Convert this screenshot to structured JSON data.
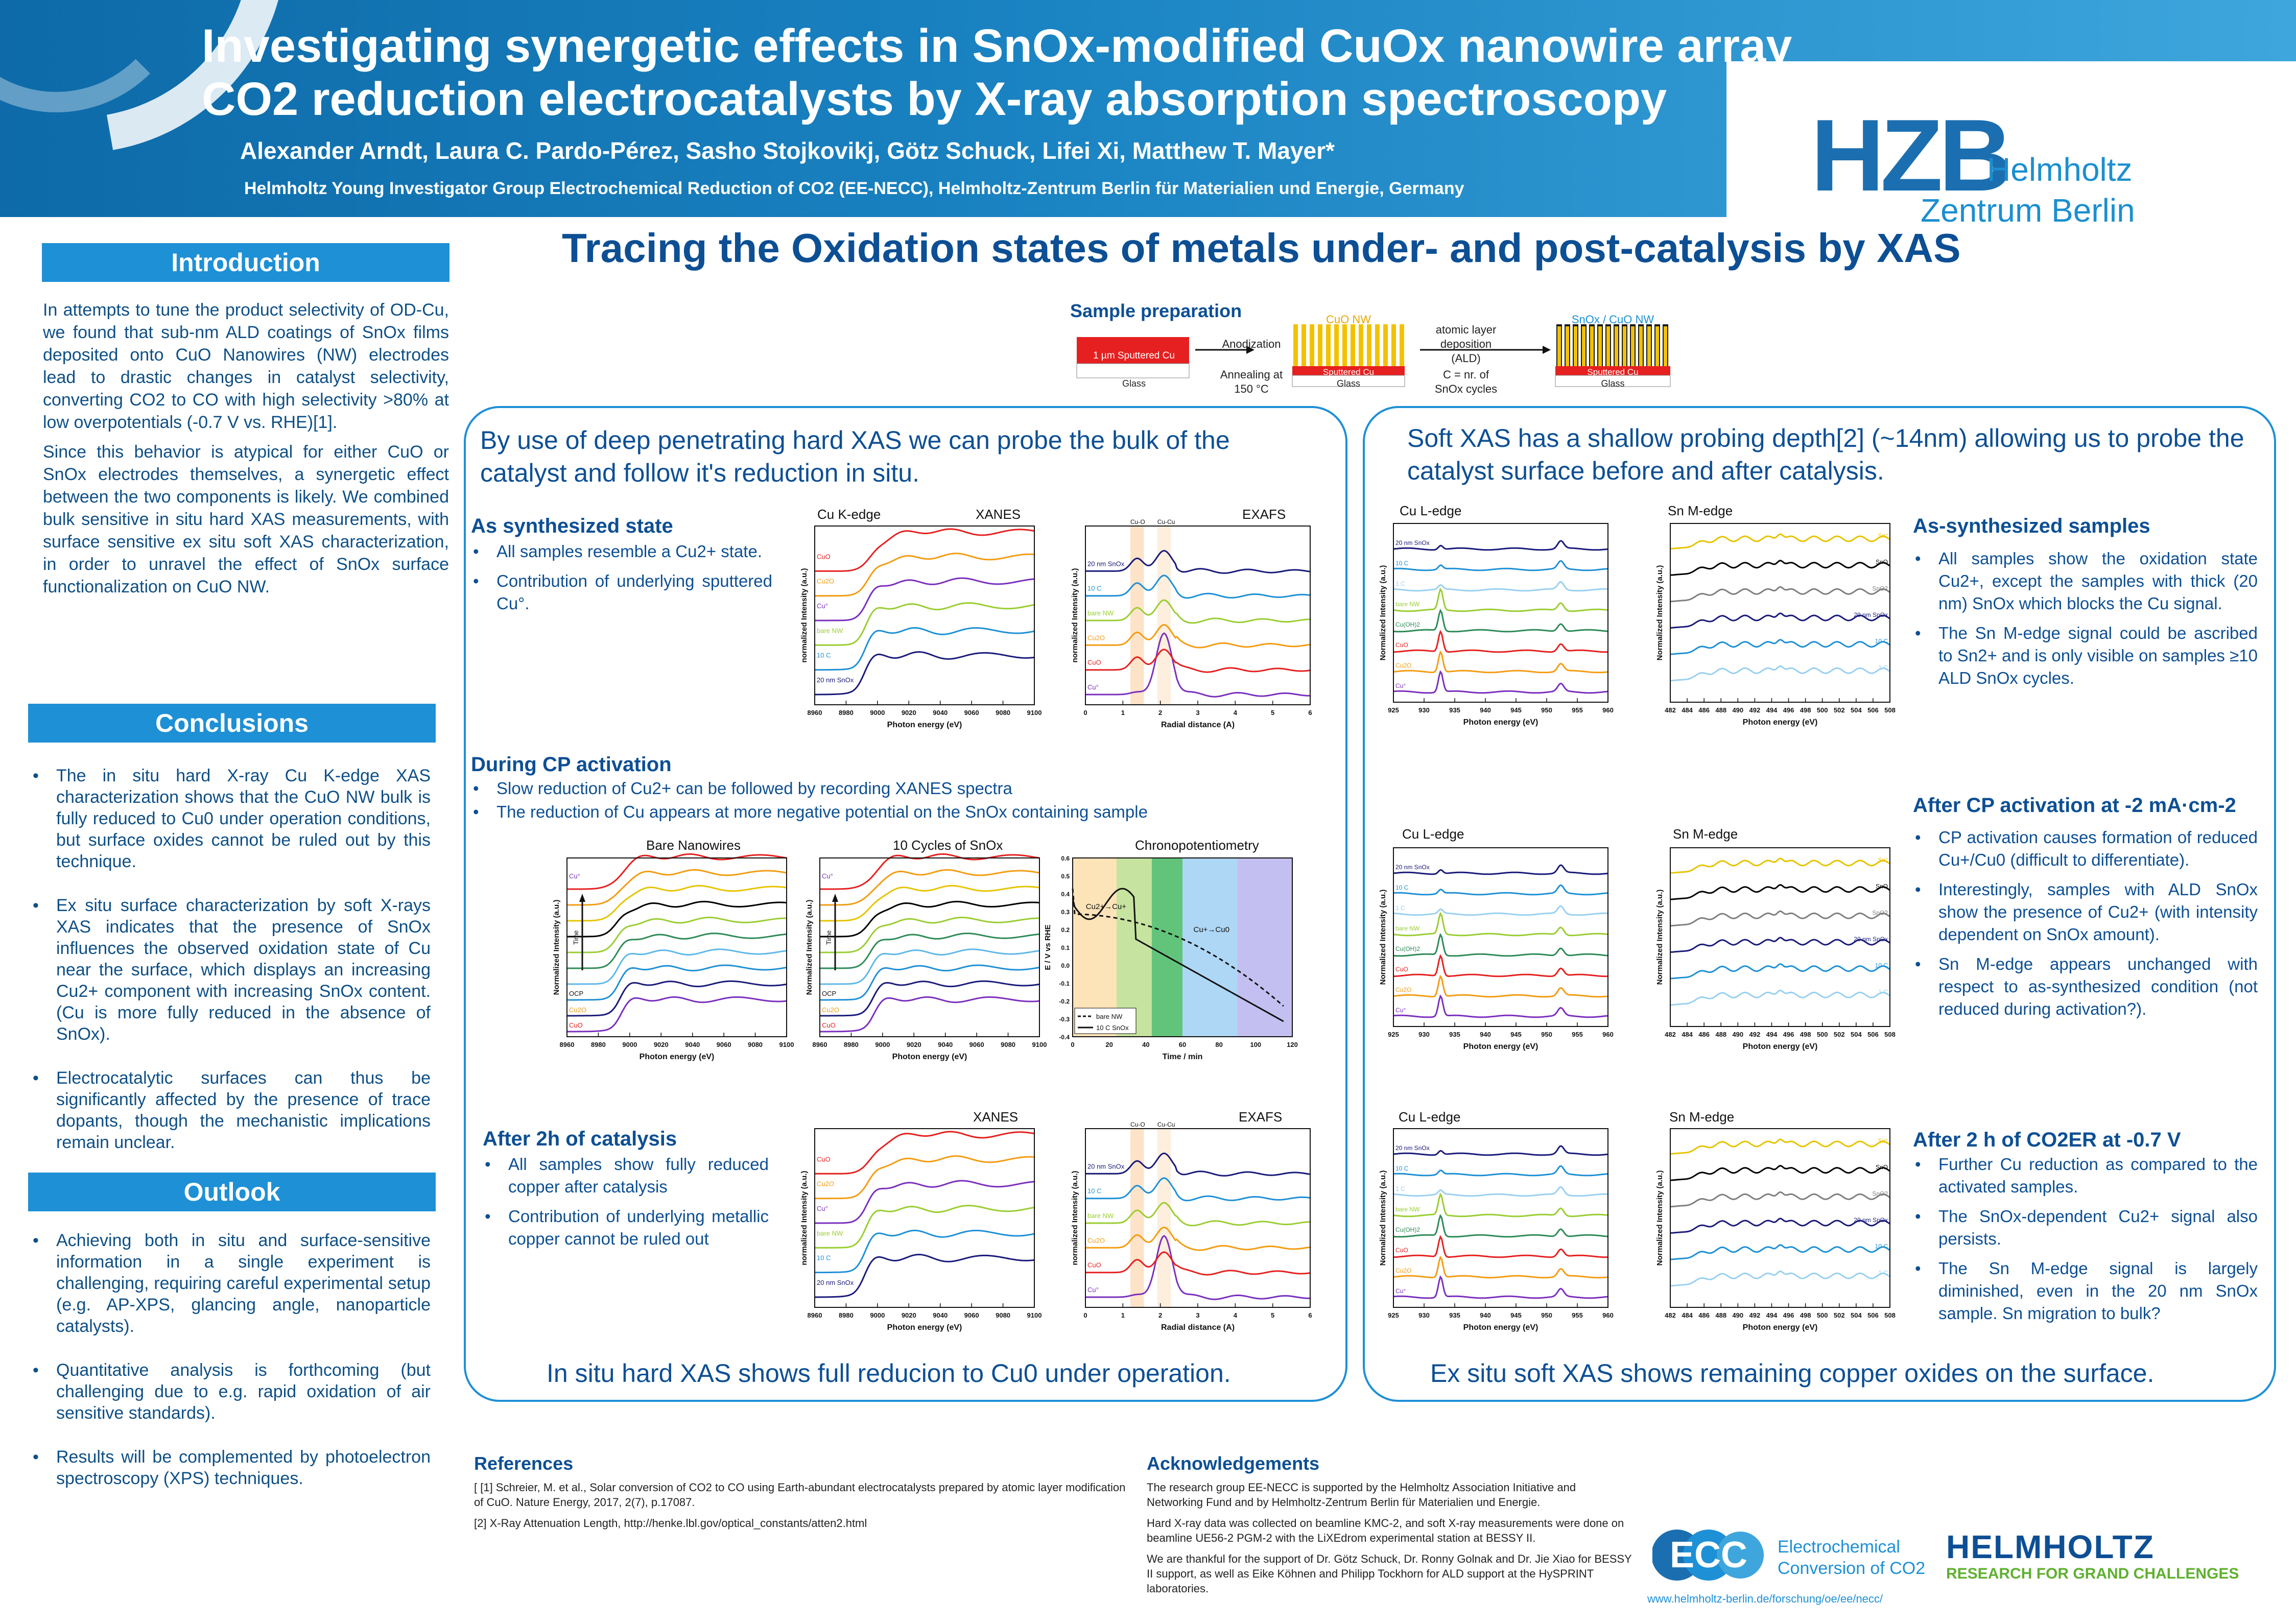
{
  "header": {
    "title_line1": "Investigating synergetic effects in SnOx-modified CuOx nanowire array",
    "title_line2": "CO2 reduction electrocatalysts by X-ray absorption spectroscopy",
    "authors": "Alexander Arndt, Laura C. Pardo-Pérez, Sasho Stojkovikj, Götz Schuck, Lifei Xi, Matthew T. Mayer*",
    "affiliation": "Helmholtz Young Investigator Group Electrochemical Reduction of CO2 (EE-NECC), Helmholtz-Zentrum Berlin für Materialien und Energie, Germany",
    "logo_mark": "HZB",
    "logo_name1": "Helmholtz",
    "logo_name2": "Zentrum Berlin"
  },
  "introduction": {
    "heading": "Introduction",
    "para1": "In attempts to tune the product selectivity of OD-Cu, we found that sub-nm ALD coatings of SnOx films deposited onto CuO Nanowires (NW) electrodes lead to drastic changes in catalyst selectivity, converting CO2 to CO with high selectivity >80% at low overpotentials (-0.7 V vs. RHE)[1].",
    "para2": "Since this behavior is atypical for either CuO or SnOx electrodes themselves, a synergetic effect between the two components is likely. We combined bulk sensitive in situ hard XAS measurements, with surface sensitive ex situ soft XAS characterization, in order to unravel the effect of SnOx surface functionalization on CuO NW."
  },
  "conclusions": {
    "heading": "Conclusions",
    "items": [
      "The in situ hard X-ray Cu K-edge XAS characterization shows that the CuO NW bulk is fully reduced to Cu0 under operation conditions, but surface oxides cannot be ruled out by this technique.",
      "Ex situ surface characterization by soft X-rays XAS indicates that the presence of SnOx influences the observed oxidation state of Cu near the surface, which displays an increasing Cu2+ component with increasing SnOx content. (Cu is more fully reduced in the absence of SnOx).",
      "Electrocatalytic surfaces can thus be significantly affected by the presence of trace dopants, though the mechanistic implications remain unclear."
    ]
  },
  "outlook": {
    "heading": "Outlook",
    "items": [
      "Achieving both in situ and surface-sensitive information in a single experiment is challenging, requiring careful experimental setup (e.g. AP-XPS, glancing angle, nanoparticle catalysts).",
      "Quantitative analysis is forthcoming (but challenging due to e.g. rapid oxidation of air sensitive standards).",
      "Results will be complemented by photoelectron spectroscopy (XPS) techniques."
    ]
  },
  "main_title": "Tracing the Oxidation states of metals under- and post-catalysis by XAS",
  "sample_prep": {
    "heading": "Sample preparation",
    "layer1": "1 µm Sputtered Cu",
    "glass": "Glass",
    "anodization": "Anodization",
    "annealing": "Annealing at 150 °C",
    "cuo_nw": "CuO NW",
    "sputtered_cu": "Sputtered Cu",
    "ald": "atomic layer deposition (ALD)",
    "cycles": "C = nr. of SnOx cycles",
    "sno_cuo": "SnOx / CuO NW"
  },
  "hard_panel": {
    "intro": "By use of deep penetrating hard XAS we can probe the bulk of the catalyst and follow it's reduction in situ.",
    "foot": "In situ hard XAS shows full reducion to Cu0 under operation.",
    "as_synth_head": "As synthesized state",
    "as_synth_items": [
      "All samples resemble a Cu2+ state.",
      "Contribution of underlying sputtered Cu°."
    ],
    "cp_head": "During CP activation",
    "cp_items": [
      "Slow reduction of Cu2+ can be followed by recording XANES spectra",
      "The reduction of Cu appears at more negative potential on the SnOx containing sample"
    ],
    "after_head": "After 2h of catalysis",
    "after_items": [
      "All samples show fully reduced copper after catalysis",
      "Contribution of underlying metallic copper cannot be ruled out"
    ],
    "cap_cuk": "Cu K-edge",
    "cap_xanes": "XANES",
    "cap_exafs": "EXAFS",
    "cap_bare": "Bare Nanowires",
    "cap_10c": "10 Cycles of SnOx",
    "cap_chrono": "Chronopotentiometry"
  },
  "soft_panel": {
    "intro": "Soft XAS has a shallow probing depth[2] (~14nm) allowing us to probe the catalyst surface before and after catalysis.",
    "foot": "Ex situ soft XAS shows remaining copper oxides on the surface.",
    "as_synth_head": "As-synthesized samples",
    "as_synth_items": [
      "All samples show the oxidation state Cu2+, except the samples with thick (20 nm) SnOx which blocks the Cu signal.",
      "The Sn M-edge signal could be ascribed to Sn2+ and is only visible on samples ≥10 ALD SnOx cycles."
    ],
    "cp_head": "After CP activation at -2 mA·cm-2",
    "cp_items": [
      "CP activation causes formation of reduced Cu+/Cu0 (difficult to differentiate).",
      "Interestingly, samples with ALD SnOx show the presence of Cu2+ (with intensity dependent on SnOx amount).",
      "Sn M-edge appears unchanged with respect to as-synthesized condition (not reduced during activation?)."
    ],
    "after_head": "After 2 h of CO2ER at -0.7 V",
    "after_items": [
      "Further Cu reduction as compared to the activated samples.",
      "The SnOx-dependent Cu2+ signal also persists.",
      "The Sn M-edge signal is largely diminished, even in the 20 nm SnOx sample. Sn migration to bulk?"
    ],
    "cap_cul": "Cu L-edge",
    "cap_snm": "Sn M-edge"
  },
  "axes": {
    "photon_ev": "Photon energy (eV)",
    "norm_int": "normalized Intensity (a.u.)",
    "norm_int2": "Normalized Intensity (a.u.)",
    "radial": "Radial distance (A)",
    "time_min": "Time / min",
    "e_rhe": "E / V vs RHE",
    "cu_ticks": [
      "8960",
      "8980",
      "9000",
      "9020",
      "9040",
      "9060",
      "9080",
      "9100"
    ],
    "r_ticks": [
      "0",
      "1",
      "2",
      "3",
      "4",
      "5",
      "6"
    ],
    "cul_ticks": [
      "925",
      "930",
      "935",
      "940",
      "945",
      "950",
      "955",
      "960"
    ],
    "snm_ticks": [
      "482",
      "484",
      "486",
      "488",
      "490",
      "492",
      "494",
      "496",
      "498",
      "500",
      "502",
      "504",
      "506",
      "508"
    ],
    "t_ticks": [
      "0",
      "20",
      "40",
      "60",
      "80",
      "100",
      "120"
    ],
    "e_ticks": [
      "0.6",
      "0.5",
      "0.4",
      "0.3",
      "0.2",
      "0.1",
      "0.0",
      "-0.1",
      "-0.2",
      "-0.3",
      "-0.4"
    ]
  },
  "series_labels": {
    "hard": [
      "20 nm SnOx",
      "10 C",
      "bare NW",
      "Cu°",
      "Cu2O",
      "CuO"
    ],
    "exafs": [
      "Cu°",
      "CuO",
      "Cu2O",
      "bare NW",
      "10 C",
      "20 nm SnOx"
    ],
    "soft_cu": [
      "20 nm SnOx",
      "10 C",
      "1 C",
      "bare NW",
      "Cu(OH)2",
      "CuO",
      "Cu2O",
      "Cu°"
    ],
    "soft_sn": [
      "Sn°",
      "SnO",
      "SnO2",
      "20 nm SnOx",
      "10 C",
      "1 C"
    ],
    "cp": [
      "Cu°",
      "OCP",
      "Cu2O",
      "CuO"
    ],
    "exafs_markers": [
      "Cu-O",
      "Cu-Cu"
    ],
    "chrono_legend": [
      "bare NW",
      "10 C SnOx"
    ],
    "chrono_notes": [
      "Cu2+→Cu+",
      "Cu+→Cu0"
    ],
    "time_arrow": "Time"
  },
  "references": {
    "heading": "References",
    "ref1": "[ [1] Schreier, M. et al., Solar conversion of CO2 to CO using Earth-abundant electrocatalysts prepared by atomic layer modification of CuO. Nature Energy, 2017, 2(7), p.17087.",
    "ref2": "[2] X-Ray Attenuation Length, http://henke.lbl.gov/optical_constants/atten2.html"
  },
  "acknowledgements": {
    "heading": "Acknowledgements",
    "p1": "The research group EE-NECC is supported by the Helmholtz Association Initiative and Networking Fund and by Helmholtz-Zentrum Berlin für Materialien und Energie.",
    "p2": "Hard X-ray data was collected on beamline KMC-2, and soft X-ray measurements were done on beamline UE56-2 PGM-2 with the LiXEdrom experimental station at BESSY II.",
    "p3": "We are thankful for the support of Dr. Götz Schuck, Dr. Ronny Golnak and Dr. Jie Xiao for BESSY II support, as well as Eike Köhnen and Philipp Tockhorn for ALD support at the HySPRINT laboratories."
  },
  "logos": {
    "ecc_mark": "ECC",
    "ecc_name1": "Electrochemical",
    "ecc_name2": "Conversion of CO2",
    "helmholtz": "HELMHOLTZ",
    "helmholtz_sub": "RESEARCH FOR GRAND CHALLENGES",
    "website": "www.helmholtz-berlin.de/forschung/oe/ee/necc/"
  },
  "colors": {
    "header": "#1a83c2",
    "heading_blue": "#0d4f94",
    "section_bar": "#1e90d6",
    "series": [
      "#1a1a7a",
      "#1e90d6",
      "#9acd32",
      "#e6c400",
      "#f39c12",
      "#e62020",
      "#7b2fbe",
      "#2e8b57",
      "#7f7f7f",
      "#000000"
    ]
  },
  "icons": [
    "hzb-logo",
    "ecc-logo",
    "helmholtz-logo",
    "bullet-icon"
  ]
}
